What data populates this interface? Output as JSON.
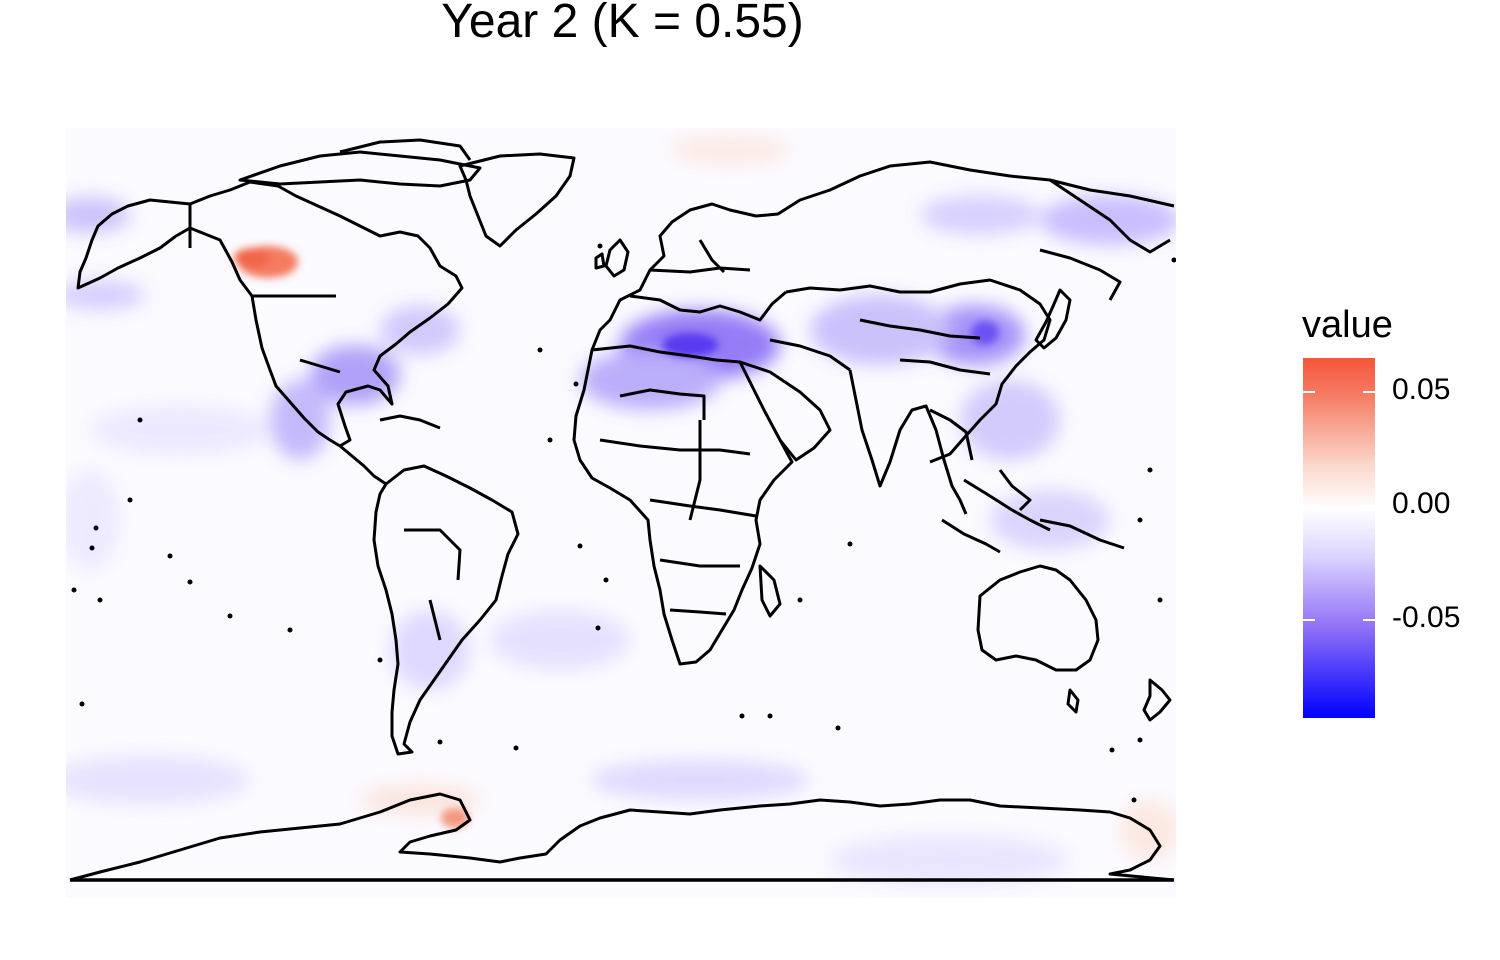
{
  "title": "Year 2 (K = 0.55)",
  "legend": {
    "title": "value",
    "ticks": [
      "0.05",
      "0.00",
      "-0.05"
    ],
    "tick_values": [
      0.05,
      0.0,
      -0.05
    ],
    "range": [
      -0.09,
      0.065
    ],
    "colors": {
      "high": "#f4553a",
      "mid": "#ffffff",
      "low": "#0000ff"
    }
  },
  "map": {
    "projection": "equirectangular",
    "graticule": false,
    "outline_color": "#000000"
  }
}
